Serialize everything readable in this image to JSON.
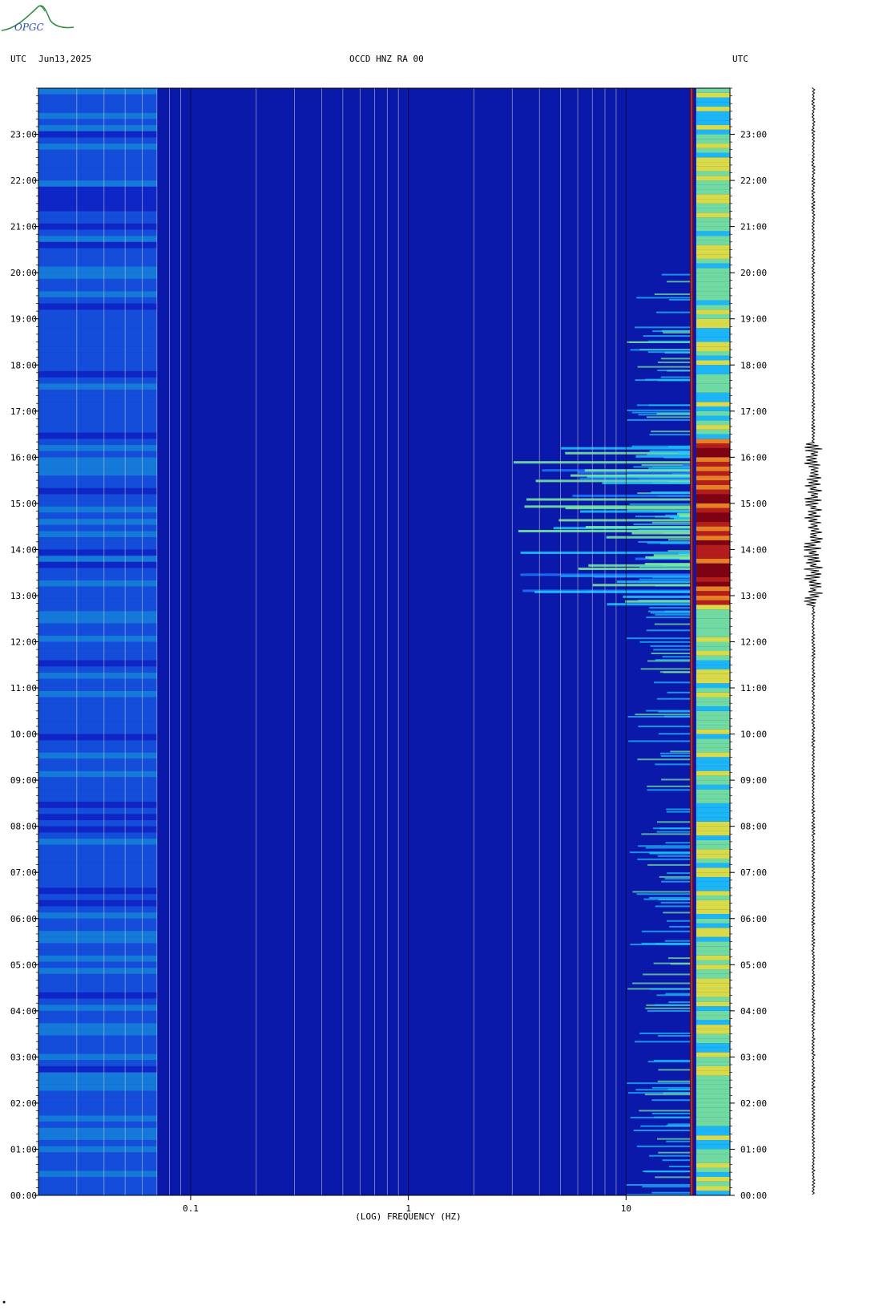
{
  "header": {
    "left_tz": "UTC",
    "date": "Jun13,2025",
    "station": "OCCD HNZ RA 00",
    "right_tz": "UTC"
  },
  "logo": {
    "text": "OPGC"
  },
  "footer_mark": "▪",
  "chart_data": {
    "type": "heatmap",
    "title": "OCCD HNZ RA 00",
    "xlabel": "(LOG) FREQUENCY (HZ)",
    "ylabel": "",
    "x_scale": "log",
    "xlim": [
      0.02,
      30
    ],
    "x_ticks": [
      0.1,
      1,
      10
    ],
    "x_tick_labels": [
      "0.1",
      "1",
      "10"
    ],
    "ylim": [
      0,
      24
    ],
    "y_ticks": [
      0,
      1,
      2,
      3,
      4,
      5,
      6,
      7,
      8,
      9,
      10,
      11,
      12,
      13,
      14,
      15,
      16,
      17,
      18,
      19,
      20,
      21,
      22,
      23
    ],
    "y_tick_labels": [
      "00:00",
      "01:00",
      "02:00",
      "03:00",
      "04:00",
      "05:00",
      "06:00",
      "07:00",
      "08:00",
      "09:00",
      "10:00",
      "11:00",
      "12:00",
      "13:00",
      "14:00",
      "15:00",
      "16:00",
      "17:00",
      "18:00",
      "19:00",
      "20:00",
      "21:00",
      "22:00",
      "23:00"
    ],
    "colormap": [
      "#0a0a96",
      "#1432dc",
      "#1e78ff",
      "#1ec8ff",
      "#7cf0a0",
      "#f0f03c",
      "#ff8c14",
      "#c81e0a",
      "#8c0000"
    ],
    "background_color": "#0a19aa",
    "grid_color": "#c8c8c8",
    "features": [
      {
        "kind": "persistent_line",
        "freq_hz": 20,
        "intensity": 8
      },
      {
        "kind": "band",
        "freq_range_hz": [
          21,
          30
        ],
        "intensity": 4
      },
      {
        "kind": "event",
        "time_range_h": [
          12.8,
          16.3
        ],
        "freq_range_hz": [
          3,
          30
        ],
        "peak_intensity": 8
      },
      {
        "kind": "low_freq_noise",
        "freq_range_hz": [
          0.02,
          0.07
        ],
        "time_range_h": [
          0,
          24
        ],
        "intensity": 2
      }
    ],
    "seismogram": {
      "event_time_range_h": [
        12.8,
        16.3
      ]
    }
  }
}
